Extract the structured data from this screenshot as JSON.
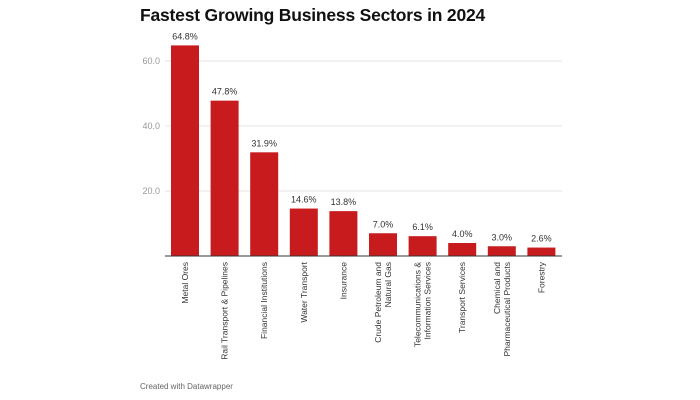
{
  "chart_data": {
    "type": "bar",
    "title": "Fastest Growing Business Sectors in 2024",
    "categories": [
      [
        "Metal Ores"
      ],
      [
        "Rail Transport & Pipelines"
      ],
      [
        "Financial Institutions"
      ],
      [
        "Water Transport"
      ],
      [
        "Insurance"
      ],
      [
        "Crude Petroleum and",
        "Natural Gas"
      ],
      [
        "Telecommunications &",
        "Information Services"
      ],
      [
        "Transport Services"
      ],
      [
        "Chemical and",
        "Pharmaceutical Products"
      ],
      [
        "Forestry"
      ]
    ],
    "values": [
      64.8,
      47.8,
      31.9,
      14.6,
      13.8,
      7.0,
      6.1,
      4.0,
      3.0,
      2.6
    ],
    "data_labels": [
      "64.8%",
      "47.8%",
      "31.9%",
      "14.6%",
      "13.8%",
      "7.0%",
      "6.1%",
      "4.0%",
      "3.0%",
      "2.6%"
    ],
    "yticks": [
      20,
      40,
      60
    ],
    "ytick_labels": [
      "20.0",
      "40.0",
      "60.0"
    ],
    "ylim": [
      0,
      65
    ],
    "grid": true,
    "bar_color": "#c71b1e",
    "xlabel": "",
    "ylabel": ""
  },
  "footer": "Created with Datawrapper"
}
